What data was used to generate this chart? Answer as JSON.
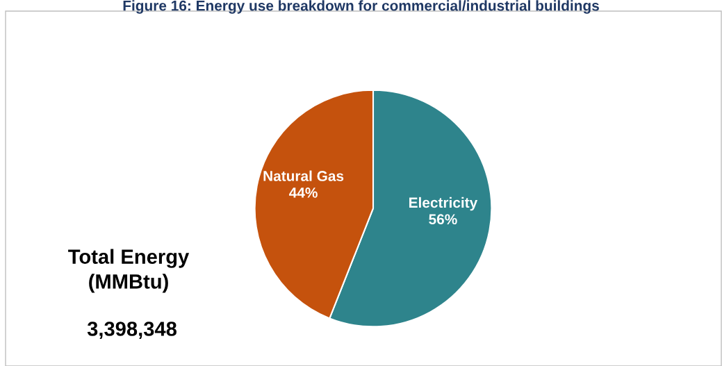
{
  "chart_data": {
    "type": "pie",
    "title": "Figure 16: Energy use breakdown for commercial/industrial buildings",
    "categories": [
      "Electricity",
      "Natural Gas"
    ],
    "values": [
      56,
      44
    ],
    "colors": [
      "#2e848c",
      "#c5520d"
    ],
    "value_labels": [
      "56%",
      "44%"
    ],
    "legend": false,
    "annotations": [
      "Total Energy\n(MMBtu)",
      "3,398,348"
    ]
  }
}
